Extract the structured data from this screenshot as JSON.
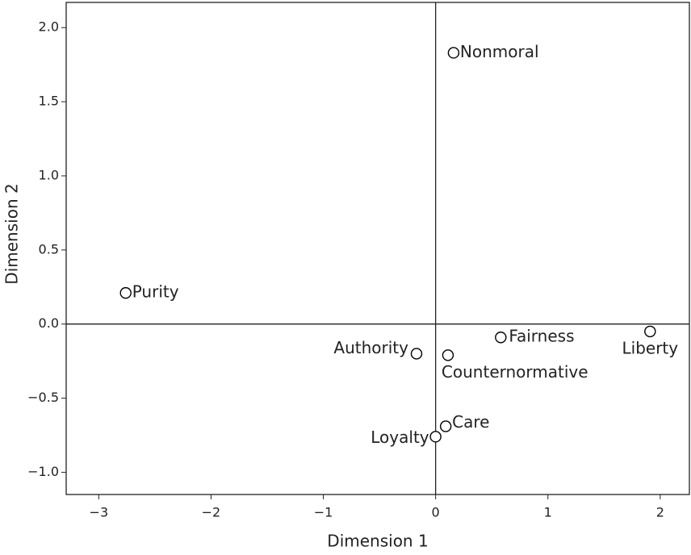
{
  "chart_data": {
    "type": "scatter",
    "xlabel": "Dimension 1",
    "ylabel": "Dimension 2",
    "labels": [
      "Nonmoral",
      "Purity",
      "Authority",
      "Counternormative",
      "Fairness",
      "Liberty",
      "Care",
      "Loyalty"
    ],
    "x": [
      0.16,
      -2.76,
      -0.17,
      0.11,
      0.58,
      1.91,
      0.09,
      0.0
    ],
    "values": [
      1.83,
      0.21,
      -0.2,
      -0.21,
      -0.09,
      -0.05,
      -0.69,
      -0.76
    ],
    "color": "#000000",
    "xlim": [
      -3.29,
      2.26
    ],
    "ylim": [
      -1.15,
      2.17
    ],
    "xticks": [
      {
        "value": -3,
        "label": "−3"
      },
      {
        "value": -2,
        "label": "−2"
      },
      {
        "value": -1,
        "label": "−1"
      },
      0,
      1,
      2
    ],
    "yticks": [
      {
        "value": 2,
        "label": "2.0"
      },
      {
        "value": 1.5,
        "label": "1.5"
      },
      {
        "value": 1,
        "label": "1.0"
      },
      {
        "value": 0.5,
        "label": "0.5"
      },
      {
        "value": 0,
        "label": "0.0"
      },
      {
        "value": -0.5,
        "label": "−0.5"
      },
      {
        "value": -1,
        "label": "−1.0"
      }
    ]
  }
}
